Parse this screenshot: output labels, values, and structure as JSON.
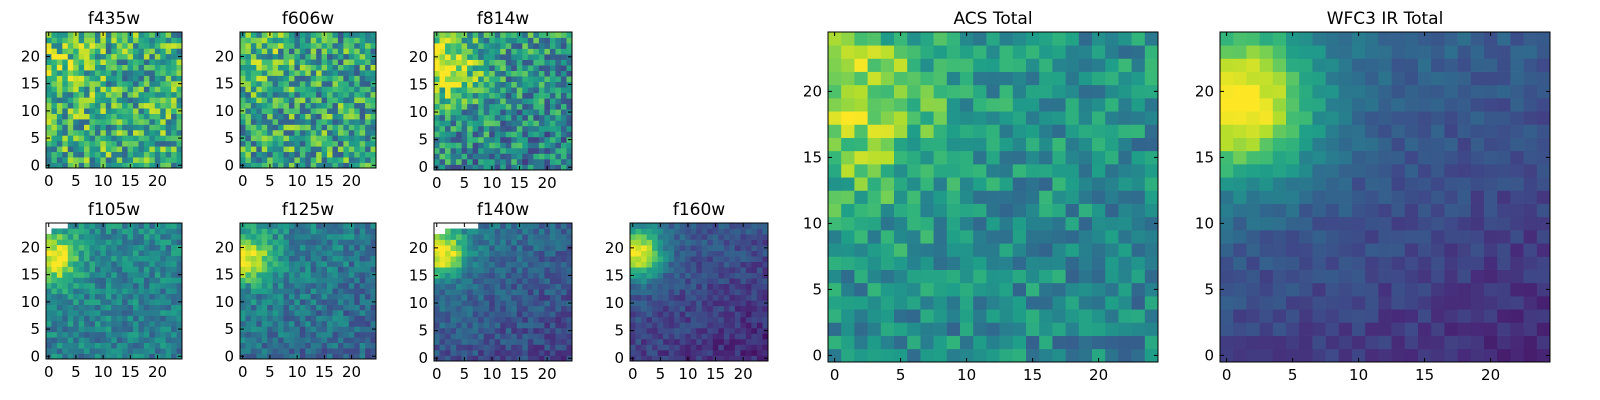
{
  "chart_data": [
    {
      "type": "heatmap",
      "title": "f435w",
      "grid_size": 25,
      "seed": 11,
      "noise": 0.62,
      "blob": {
        "x": 2,
        "y": 18,
        "amp": 0.1,
        "sigma": 5
      },
      "base": 0.62,
      "gradient": 0.0,
      "missing": [],
      "x_ticks": [
        0,
        5,
        10,
        15,
        20
      ],
      "y_ticks": [
        0,
        5,
        10,
        15,
        20
      ],
      "colormap": "viridis"
    },
    {
      "type": "heatmap",
      "title": "f606w",
      "grid_size": 25,
      "seed": 23,
      "noise": 0.62,
      "blob": {
        "x": 2,
        "y": 18,
        "amp": 0.1,
        "sigma": 5
      },
      "base": 0.58,
      "gradient": 0.0,
      "missing": [],
      "x_ticks": [
        0,
        5,
        10,
        15,
        20
      ],
      "y_ticks": [
        0,
        5,
        10,
        15,
        20
      ],
      "colormap": "viridis"
    },
    {
      "type": "heatmap",
      "title": "f814w",
      "grid_size": 25,
      "seed": 37,
      "noise": 0.55,
      "blob": {
        "x": 2,
        "y": 18,
        "amp": 0.4,
        "sigma": 4
      },
      "base": 0.5,
      "gradient": 0.1,
      "missing": [],
      "x_ticks": [
        0,
        5,
        10,
        15,
        20
      ],
      "y_ticks": [
        0,
        5,
        10,
        15,
        20
      ],
      "colormap": "viridis"
    },
    {
      "type": "heatmap",
      "title": "f105w",
      "grid_size": 25,
      "seed": 41,
      "noise": 0.3,
      "blob": {
        "x": 1,
        "y": 18,
        "amp": 0.55,
        "sigma": 3
      },
      "base": 0.45,
      "gradient": 0.05,
      "missing": [
        [
          0,
          24
        ],
        [
          1,
          24
        ],
        [
          2,
          24
        ],
        [
          0,
          23
        ],
        [
          3,
          24
        ]
      ],
      "x_ticks": [
        0,
        5,
        10,
        15,
        20
      ],
      "y_ticks": [
        0,
        5,
        10,
        15,
        20
      ],
      "colormap": "viridis"
    },
    {
      "type": "heatmap",
      "title": "f125w",
      "grid_size": 25,
      "seed": 53,
      "noise": 0.3,
      "blob": {
        "x": 1,
        "y": 18,
        "amp": 0.55,
        "sigma": 3
      },
      "base": 0.4,
      "gradient": 0.1,
      "missing": [],
      "x_ticks": [
        0,
        5,
        10,
        15,
        20
      ],
      "y_ticks": [
        0,
        5,
        10,
        15,
        20
      ],
      "colormap": "viridis"
    },
    {
      "type": "heatmap",
      "title": "f140w",
      "grid_size": 25,
      "seed": 67,
      "noise": 0.22,
      "blob": {
        "x": 1,
        "y": 19,
        "amp": 0.65,
        "sigma": 3
      },
      "base": 0.3,
      "gradient": 0.15,
      "missing": [
        [
          0,
          24
        ],
        [
          1,
          24
        ],
        [
          2,
          24
        ],
        [
          3,
          24
        ],
        [
          4,
          24
        ],
        [
          5,
          24
        ],
        [
          6,
          24
        ],
        [
          7,
          24
        ],
        [
          0,
          23
        ],
        [
          1,
          23
        ]
      ],
      "x_ticks": [
        0,
        5,
        10,
        15,
        20
      ],
      "y_ticks": [
        0,
        5,
        10,
        15,
        20
      ],
      "colormap": "viridis"
    },
    {
      "type": "heatmap",
      "title": "f160w",
      "grid_size": 25,
      "seed": 71,
      "noise": 0.18,
      "blob": {
        "x": 1,
        "y": 19,
        "amp": 0.7,
        "sigma": 3
      },
      "base": 0.22,
      "gradient": 0.15,
      "missing": [],
      "x_ticks": [
        0,
        5,
        10,
        15,
        20
      ],
      "y_ticks": [
        0,
        5,
        10,
        15,
        20
      ],
      "colormap": "viridis"
    },
    {
      "type": "heatmap",
      "title": "ACS Total",
      "grid_size": 25,
      "seed": 83,
      "noise": 0.35,
      "blob": {
        "x": 1,
        "y": 19,
        "amp": 0.35,
        "sigma": 5
      },
      "base": 0.5,
      "gradient": 0.05,
      "missing": [],
      "x_ticks": [
        0,
        5,
        10,
        15,
        20
      ],
      "y_ticks": [
        0,
        5,
        10,
        15,
        20
      ],
      "colormap": "viridis"
    },
    {
      "type": "heatmap",
      "title": "WFC3 IR Total",
      "grid_size": 25,
      "seed": 97,
      "noise": 0.12,
      "blob": {
        "x": 1,
        "y": 19,
        "amp": 0.7,
        "sigma": 4
      },
      "base": 0.25,
      "gradient": 0.18,
      "missing": [],
      "x_ticks": [
        0,
        5,
        10,
        15,
        20
      ],
      "y_ticks": [
        0,
        5,
        10,
        15,
        20
      ],
      "colormap": "viridis"
    }
  ]
}
